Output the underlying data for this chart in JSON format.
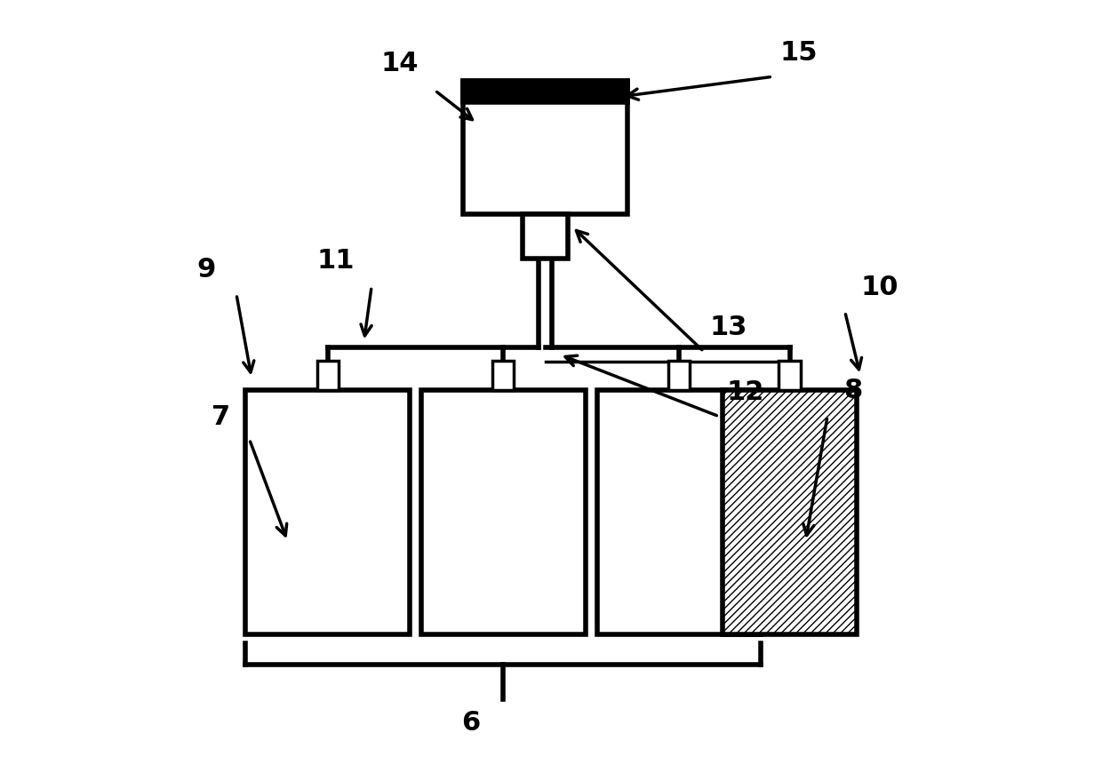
{
  "bg_color": "#ffffff",
  "line_color": "#000000",
  "fill_color": "#ffffff",
  "hatch_fill": "////",
  "fig_width": 12.4,
  "fig_height": 8.62,
  "label_fontsize": 22,
  "label_fontweight": "bold"
}
